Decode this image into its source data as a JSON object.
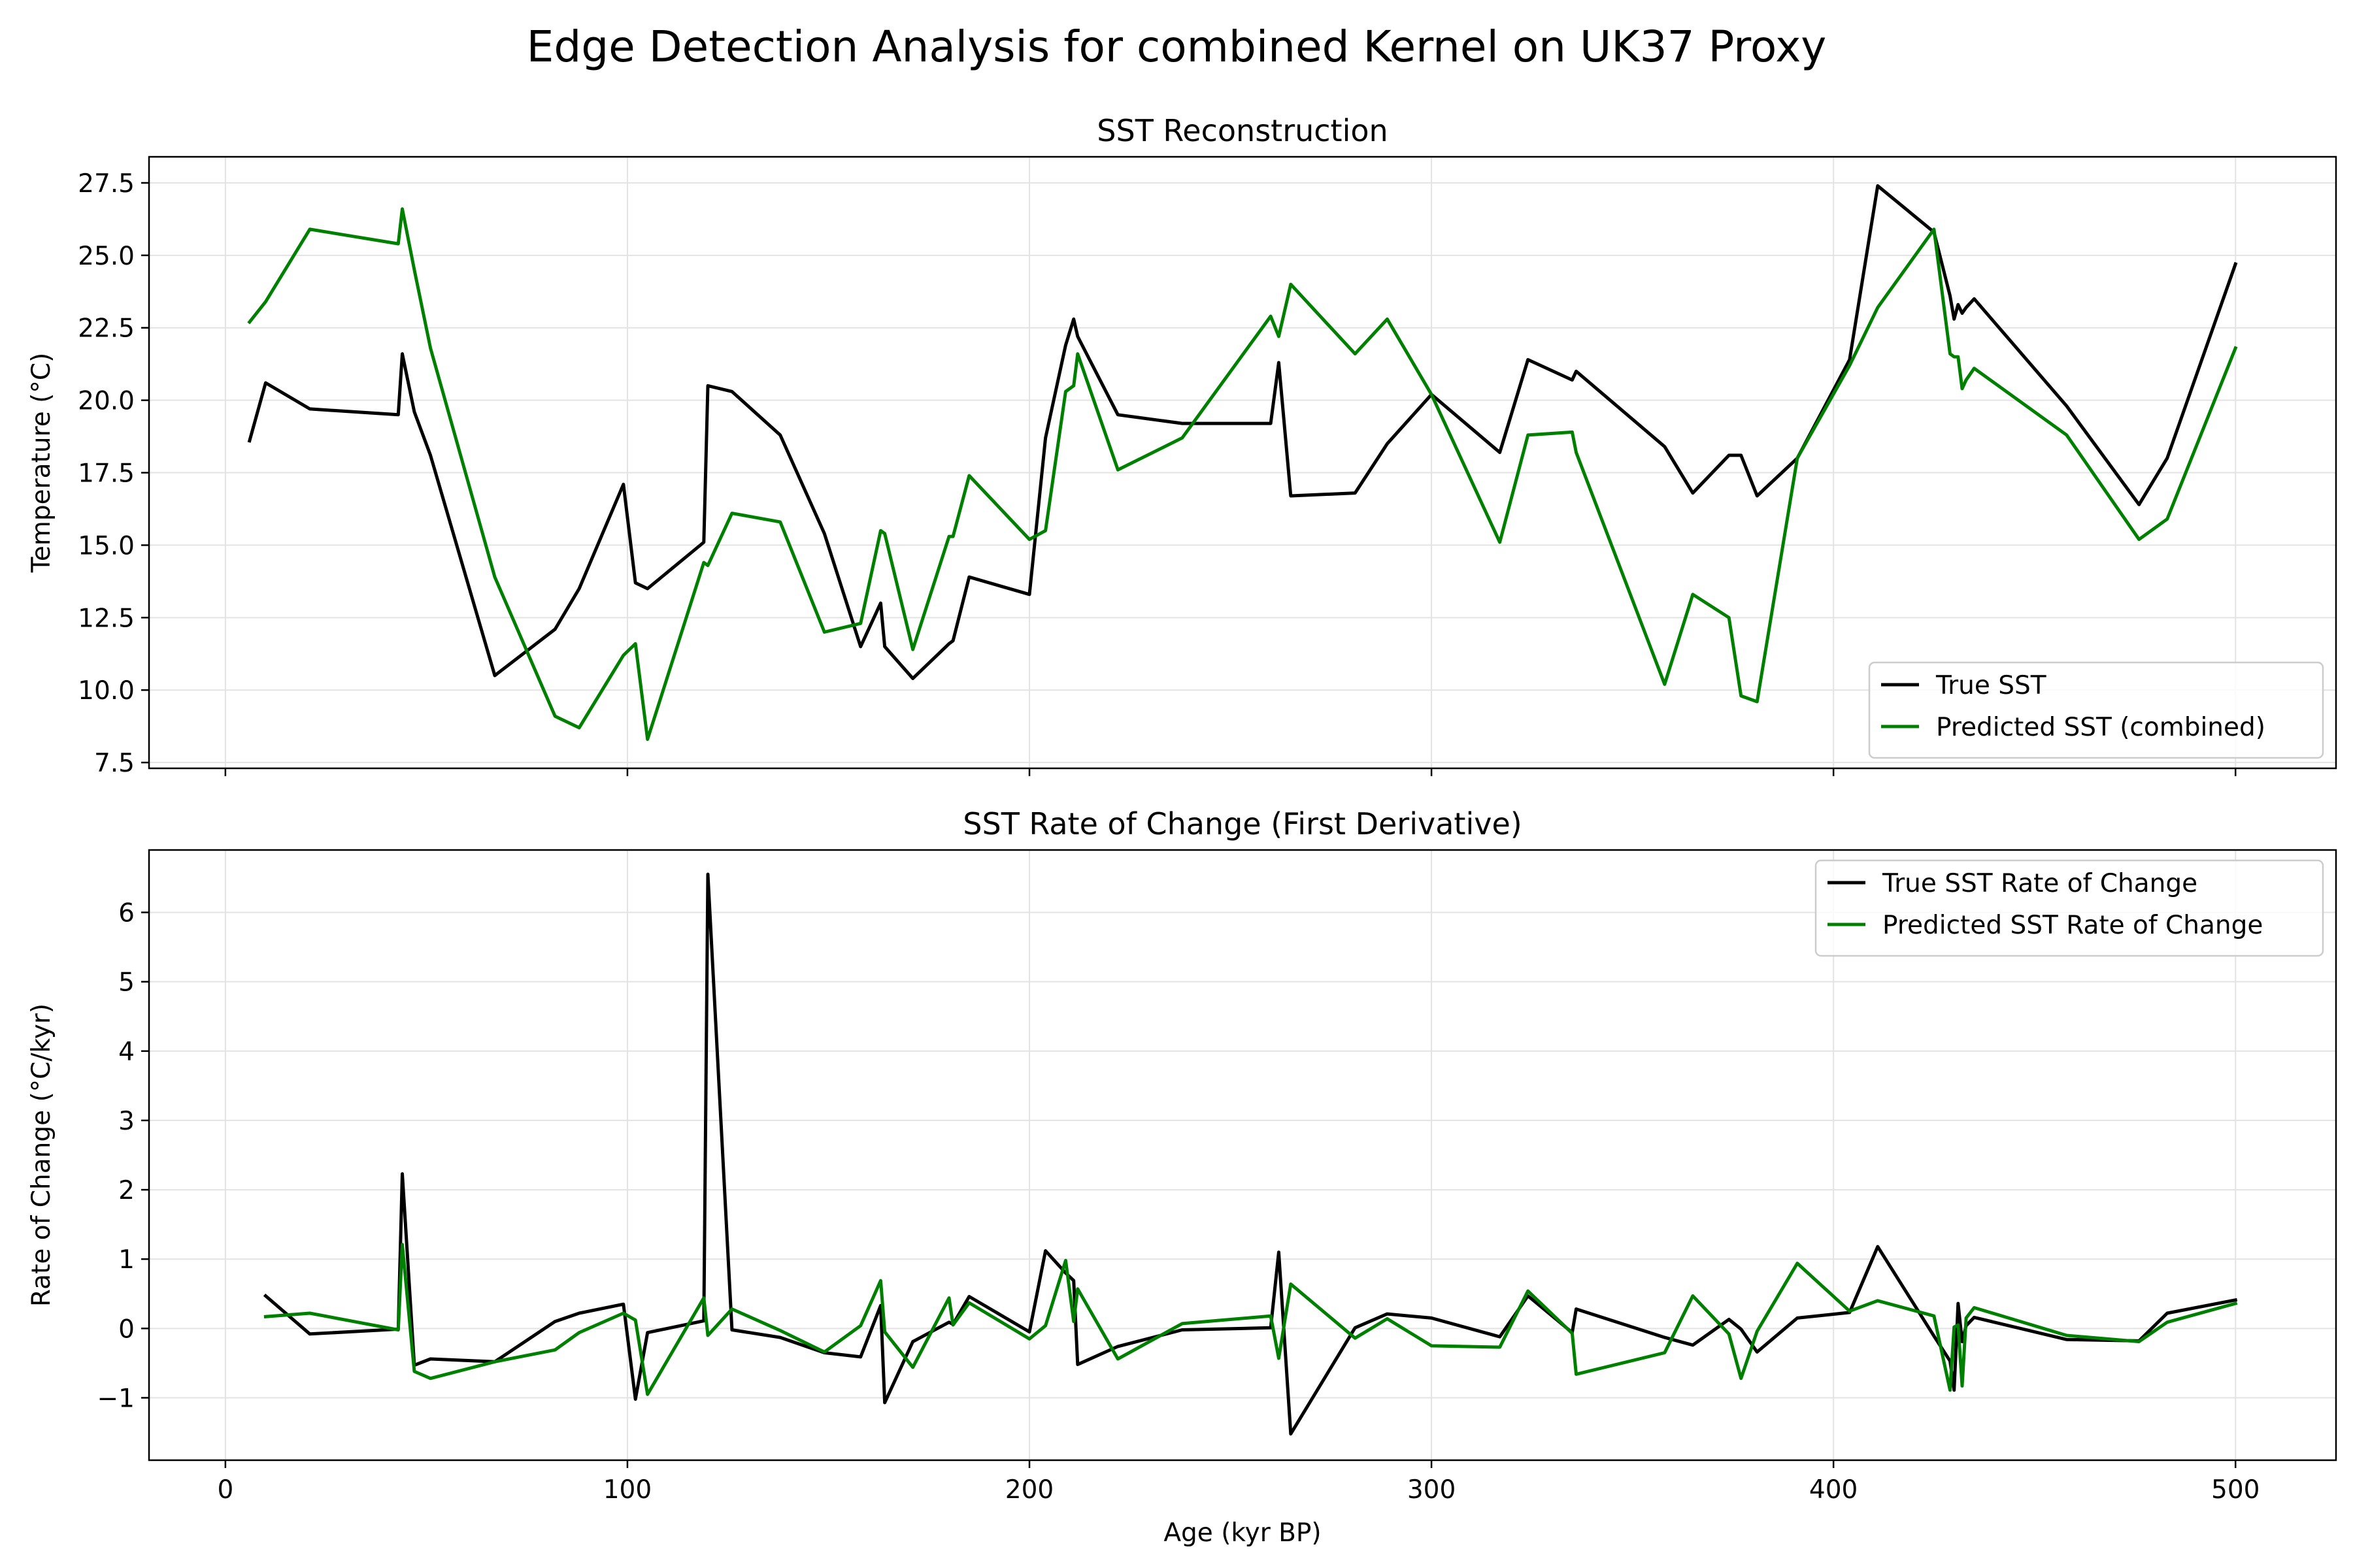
{
  "figure": {
    "suptitle": "Edge Detection Analysis for combined Kernel on UK37 Proxy"
  },
  "colors": {
    "true": "#000000",
    "predicted": "#008000",
    "grid": "#e3e3e3"
  },
  "chart_data": [
    {
      "type": "line",
      "title": "SST Reconstruction",
      "xlabel": "",
      "ylabel": "Temperature (°C)",
      "xlim": [
        -19,
        525
      ],
      "ylim": [
        7.3,
        28.4
      ],
      "xticks": [
        0,
        100,
        200,
        300,
        400,
        500
      ],
      "xticklabels": [
        "",
        "",
        "",
        "",
        "",
        ""
      ],
      "yticks": [
        7.5,
        10.0,
        12.5,
        15.0,
        17.5,
        20.0,
        22.5,
        25.0,
        27.5
      ],
      "yticklabels": [
        "7.5",
        "10.0",
        "12.5",
        "15.0",
        "17.5",
        "20.0",
        "22.5",
        "25.0",
        "27.5"
      ],
      "grid": true,
      "legend": "lower right",
      "series": [
        {
          "name": "True SST",
          "color": "#000000",
          "x": [
            6,
            10,
            21,
            43,
            44,
            47,
            51,
            67,
            82,
            88,
            99,
            102,
            105,
            119,
            120,
            126,
            138,
            149,
            158,
            163,
            164,
            171,
            180,
            181,
            185,
            200,
            204,
            209,
            211,
            212,
            222,
            238,
            260,
            262,
            265,
            281,
            289,
            300,
            317,
            324,
            335,
            336,
            358,
            365,
            374,
            377,
            381,
            391,
            404,
            411,
            425,
            429,
            430,
            431,
            432,
            433,
            435,
            458,
            476,
            483,
            500
          ],
          "y": [
            18.6,
            20.6,
            19.7,
            19.5,
            21.6,
            19.6,
            18.1,
            10.5,
            12.1,
            13.5,
            17.1,
            13.7,
            13.5,
            15.1,
            20.5,
            20.3,
            18.8,
            15.4,
            11.5,
            13.0,
            11.5,
            10.4,
            11.6,
            11.7,
            13.9,
            13.3,
            18.7,
            21.9,
            22.8,
            22.2,
            19.5,
            19.2,
            19.2,
            21.3,
            16.7,
            16.8,
            18.5,
            20.2,
            18.2,
            21.4,
            20.7,
            21.0,
            18.4,
            16.8,
            18.1,
            18.1,
            16.7,
            18.0,
            21.4,
            27.4,
            25.8,
            23.6,
            22.8,
            23.3,
            23.0,
            23.2,
            23.5,
            19.8,
            16.4,
            18.0,
            24.7
          ]
        },
        {
          "name": "Predicted SST (combined)",
          "color": "#008000",
          "x": [
            6,
            10,
            21,
            43,
            44,
            47,
            51,
            67,
            82,
            88,
            99,
            102,
            105,
            119,
            120,
            126,
            138,
            149,
            158,
            163,
            164,
            171,
            180,
            181,
            185,
            200,
            204,
            209,
            211,
            212,
            222,
            238,
            260,
            262,
            265,
            281,
            289,
            300,
            317,
            324,
            335,
            336,
            358,
            365,
            374,
            377,
            381,
            391,
            404,
            411,
            425,
            429,
            430,
            431,
            432,
            433,
            435,
            458,
            476,
            483,
            500
          ],
          "y": [
            22.7,
            23.4,
            25.9,
            25.4,
            26.6,
            24.5,
            21.8,
            13.9,
            9.1,
            8.7,
            11.2,
            11.6,
            8.3,
            14.4,
            14.3,
            16.1,
            15.8,
            12.0,
            12.3,
            15.5,
            15.4,
            11.4,
            15.3,
            15.3,
            17.4,
            15.2,
            15.5,
            20.3,
            20.5,
            21.6,
            17.6,
            18.7,
            22.9,
            22.2,
            24.0,
            21.6,
            22.8,
            20.2,
            15.1,
            18.8,
            18.9,
            18.2,
            10.2,
            13.3,
            12.5,
            9.8,
            9.6,
            18.0,
            21.2,
            23.2,
            25.9,
            21.6,
            21.5,
            21.5,
            20.4,
            20.7,
            21.1,
            18.8,
            15.2,
            15.9,
            21.8
          ]
        }
      ]
    },
    {
      "type": "line",
      "title": "SST Rate of Change (First Derivative)",
      "xlabel": "Age (kyr BP)",
      "ylabel": "Rate of Change (°C/kyr)",
      "xlim": [
        -19,
        525
      ],
      "ylim": [
        -1.9,
        6.9
      ],
      "xticks": [
        0,
        100,
        200,
        300,
        400,
        500
      ],
      "xticklabels": [
        "0",
        "100",
        "200",
        "300",
        "400",
        "500"
      ],
      "yticks": [
        -1,
        0,
        1,
        2,
        3,
        4,
        5,
        6
      ],
      "yticklabels": [
        "−1",
        "0",
        "1",
        "2",
        "3",
        "4",
        "5",
        "6"
      ],
      "grid": true,
      "legend": "upper right",
      "series": [
        {
          "name": "True SST Rate of Change",
          "color": "#000000",
          "x": [
            10,
            21,
            43,
            44,
            47,
            51,
            67,
            82,
            88,
            99,
            102,
            105,
            119,
            120,
            126,
            138,
            149,
            158,
            163,
            164,
            171,
            180,
            181,
            185,
            200,
            204,
            209,
            211,
            212,
            222,
            238,
            260,
            262,
            265,
            281,
            289,
            300,
            317,
            324,
            335,
            336,
            358,
            365,
            374,
            377,
            381,
            391,
            404,
            411,
            425,
            429,
            430,
            431,
            432,
            433,
            435,
            458,
            476,
            483,
            500
          ],
          "y": [
            0.47,
            -0.08,
            -0.01,
            2.23,
            -0.53,
            -0.44,
            -0.48,
            0.1,
            0.22,
            0.35,
            -1.02,
            -0.06,
            0.11,
            6.55,
            -0.02,
            -0.13,
            -0.35,
            -0.41,
            0.33,
            -1.07,
            -0.19,
            0.09,
            0.06,
            0.46,
            -0.05,
            1.12,
            0.8,
            0.69,
            -0.52,
            -0.26,
            -0.02,
            0.01,
            1.1,
            -1.52,
            0.01,
            0.21,
            0.15,
            -0.12,
            0.47,
            -0.06,
            0.28,
            -0.13,
            -0.24,
            0.13,
            -0.01,
            -0.34,
            0.15,
            0.23,
            1.18,
            -0.11,
            -0.47,
            -0.89,
            0.36,
            -0.19,
            0.04,
            0.16,
            -0.16,
            -0.18,
            0.22,
            0.41
          ]
        },
        {
          "name": "Predicted SST Rate of Change",
          "color": "#008000",
          "x": [
            10,
            21,
            43,
            44,
            47,
            51,
            67,
            82,
            88,
            99,
            102,
            105,
            119,
            120,
            126,
            138,
            149,
            158,
            163,
            164,
            171,
            180,
            181,
            185,
            200,
            204,
            209,
            211,
            212,
            222,
            238,
            260,
            262,
            265,
            281,
            289,
            300,
            317,
            324,
            335,
            336,
            358,
            365,
            374,
            377,
            381,
            391,
            404,
            411,
            425,
            429,
            430,
            431,
            432,
            433,
            435,
            458,
            476,
            483,
            500
          ],
          "y": [
            0.17,
            0.22,
            -0.02,
            1.21,
            -0.62,
            -0.72,
            -0.48,
            -0.31,
            -0.06,
            0.22,
            0.12,
            -0.95,
            0.44,
            -0.1,
            0.28,
            -0.03,
            -0.34,
            0.04,
            0.69,
            -0.05,
            -0.56,
            0.44,
            0.05,
            0.37,
            -0.15,
            0.04,
            0.98,
            0.1,
            0.57,
            -0.44,
            0.07,
            0.18,
            -0.43,
            0.64,
            -0.14,
            0.14,
            -0.25,
            -0.27,
            0.54,
            -0.07,
            -0.66,
            -0.35,
            0.47,
            -0.08,
            -0.72,
            -0.04,
            0.94,
            0.25,
            0.4,
            0.18,
            -0.89,
            0.02,
            0.05,
            -0.83,
            0.15,
            0.3,
            -0.1,
            -0.19,
            0.09,
            0.36
          ]
        }
      ]
    }
  ]
}
